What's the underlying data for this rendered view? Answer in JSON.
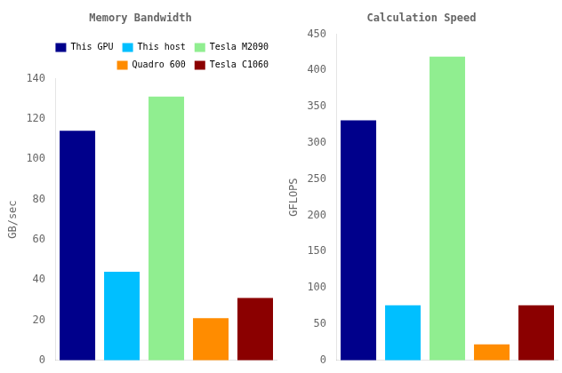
{
  "chart_data": [
    {
      "type": "bar",
      "title": "Memory Bandwidth",
      "ylabel": "GB/sec",
      "categories": [
        "This GPU",
        "This host",
        "Tesla M2090",
        "Quadro 600",
        "Tesla C1060"
      ],
      "values": [
        114.0,
        44.0,
        131.0,
        21.0,
        31.0
      ],
      "colors": [
        "#00008B",
        "#00BFFF",
        "#90EE90",
        "#FF8C00",
        "#8B0000"
      ],
      "ylim": [
        0,
        140
      ],
      "yticks": [
        0,
        20,
        40,
        60,
        80,
        100,
        120,
        140
      ],
      "grid": false,
      "legend": "upper right",
      "tick_labels": "y"
    },
    {
      "type": "bar",
      "title": "Calculation Speed",
      "ylabel": "GFLOPS",
      "categories": [
        "This GPU",
        "This host",
        "Tesla M2090",
        "Quadro 600",
        "Tesla C1060"
      ],
      "values": [
        331.0,
        76.0,
        419.0,
        22.0,
        76.0
      ],
      "colors": [
        "#00008B",
        "#00BFFF",
        "#90EE90",
        "#FF8C00",
        "#8B0000"
      ],
      "ylim": [
        0,
        450
      ],
      "yticks": [
        0,
        50,
        100,
        150,
        200,
        250,
        300,
        350,
        400,
        450
      ],
      "grid": false,
      "tick_labels": "y"
    }
  ]
}
